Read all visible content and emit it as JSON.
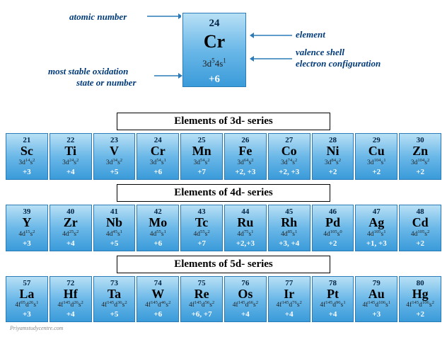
{
  "legend": {
    "cell": {
      "num": "24",
      "sym": "Cr",
      "cfg": "3d54s1",
      "ox": "+6"
    },
    "labels": {
      "atomicNumber": "atomic number",
      "element": "element",
      "valence1": "valence shell",
      "valence2": "electron configuration",
      "stable1": "most stable oxidation",
      "stable2": "state or number"
    }
  },
  "series": [
    {
      "title": "Elements of 3d- series",
      "cells": [
        {
          "num": "21",
          "sym": "Sc",
          "cfg": "3d14s2",
          "ox": "+3"
        },
        {
          "num": "22",
          "sym": "Ti",
          "cfg": "3d24s2",
          "ox": "+4"
        },
        {
          "num": "23",
          "sym": "V",
          "cfg": "3d34s2",
          "ox": "+5"
        },
        {
          "num": "24",
          "sym": "Cr",
          "cfg": "3d54s1",
          "ox": "+6"
        },
        {
          "num": "25",
          "sym": "Mn",
          "cfg": "3d54s2",
          "ox": "+7"
        },
        {
          "num": "26",
          "sym": "Fe",
          "cfg": "3d64s2",
          "ox": "+2, +3"
        },
        {
          "num": "27",
          "sym": "Co",
          "cfg": "3d74s2",
          "ox": "+2, +3"
        },
        {
          "num": "28",
          "sym": "Ni",
          "cfg": "3d84s2",
          "ox": "+2"
        },
        {
          "num": "29",
          "sym": "Cu",
          "cfg": "3d104s1",
          "ox": "+2"
        },
        {
          "num": "30",
          "sym": "Zn",
          "cfg": "3d104s2",
          "ox": "+2"
        }
      ]
    },
    {
      "title": "Elements of 4d- series",
      "cells": [
        {
          "num": "39",
          "sym": "Y",
          "cfg": "4d15s2",
          "ox": "+3"
        },
        {
          "num": "40",
          "sym": "Zr",
          "cfg": "4d25s2",
          "ox": "+4"
        },
        {
          "num": "41",
          "sym": "Nb",
          "cfg": "4d45s1",
          "ox": "+5"
        },
        {
          "num": "42",
          "sym": "Mo",
          "cfg": "4d55s1",
          "ox": "+6"
        },
        {
          "num": "43",
          "sym": "Tc",
          "cfg": "4d55s2",
          "ox": "+7"
        },
        {
          "num": "44",
          "sym": "Ru",
          "cfg": "4d75s1",
          "ox": "+2,+3"
        },
        {
          "num": "45",
          "sym": "Rh",
          "cfg": "4d85s1",
          "ox": "+3, +4"
        },
        {
          "num": "46",
          "sym": "Pd",
          "cfg": "4d105s0",
          "ox": "+2"
        },
        {
          "num": "47",
          "sym": "Ag",
          "cfg": "4d105s1",
          "ox": "+1, +3"
        },
        {
          "num": "48",
          "sym": "Cd",
          "cfg": "4d105s2",
          "ox": "+2"
        }
      ]
    },
    {
      "title": "Elements of 5d- series",
      "cells": [
        {
          "num": "57",
          "sym": "La",
          "cfg": "4f05d26s1",
          "ox": "+3"
        },
        {
          "num": "72",
          "sym": "Hf",
          "cfg": "4f145d26s2",
          "ox": "+4"
        },
        {
          "num": "73",
          "sym": "Ta",
          "cfg": "4f145d36s2",
          "ox": "+5"
        },
        {
          "num": "74",
          "sym": "W",
          "cfg": "4f145d46s2",
          "ox": "+6"
        },
        {
          "num": "75",
          "sym": "Re",
          "cfg": "4f145d56s2",
          "ox": "+6, +7"
        },
        {
          "num": "76",
          "sym": "Os",
          "cfg": "4f145d66s2",
          "ox": "+4"
        },
        {
          "num": "77",
          "sym": "Ir",
          "cfg": "4f145d76s2",
          "ox": "+4"
        },
        {
          "num": "78",
          "sym": "Pt",
          "cfg": "4f145d96s1",
          "ox": "+4"
        },
        {
          "num": "79",
          "sym": "Au",
          "cfg": "4f145d106s1",
          "ox": "+3"
        },
        {
          "num": "80",
          "sym": "Hg",
          "cfg": "4f145d106s2",
          "ox": "+2"
        }
      ]
    }
  ],
  "watermark": "Priyamstudycentre.com",
  "colors": {
    "gradientTop": "#b8e0f5",
    "gradientMid": "#6bb8e8",
    "gradientBot": "#3a9bd9",
    "border": "#2a7bb8",
    "labelText": "#003a7a",
    "numText": "#002244",
    "oxText": "#ffffff"
  }
}
